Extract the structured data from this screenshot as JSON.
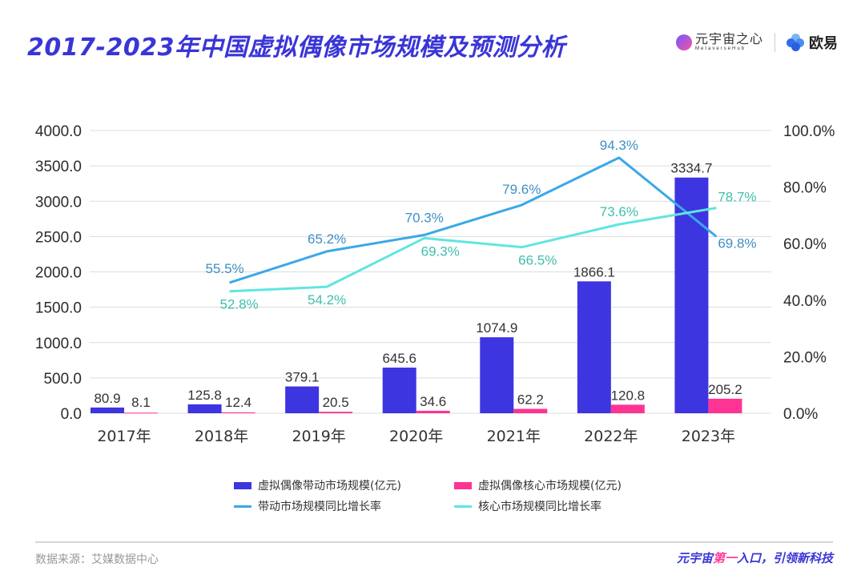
{
  "header": {
    "title": "2017-2023年中国虚拟偶像市场规模及预测分析",
    "logo1_cn": "元宇宙之心",
    "logo1_en": "MetaverseHub",
    "logo2_text": "欧易"
  },
  "chart_data": {
    "type": "bar",
    "title": "2017-2023年中国虚拟偶像市场规模及预测分析",
    "categories": [
      "2017年",
      "2018年",
      "2019年",
      "2020年",
      "2021年",
      "2022年",
      "2023年"
    ],
    "series": [
      {
        "name": "虚拟偶像带动市场规模(亿元)",
        "type": "bar",
        "axis": "left",
        "color": "#3d35e0",
        "values": [
          80.9,
          125.8,
          379.1,
          645.6,
          1074.9,
          1866.1,
          3334.7
        ],
        "labels": [
          "80.9",
          "125.8",
          "379.1",
          "645.6",
          "1074.9",
          "1866.1",
          "3334.7"
        ]
      },
      {
        "name": "虚拟偶像核心市场规模(亿元)",
        "type": "bar",
        "axis": "left",
        "color": "#ff3393",
        "values": [
          8.1,
          12.4,
          20.5,
          34.6,
          62.2,
          120.8,
          205.2
        ],
        "labels": [
          "8.1",
          "12.4",
          "20.5",
          "34.6",
          "62.2",
          "120.8",
          "205.2"
        ]
      },
      {
        "name": "带动市场规模同比增长率",
        "type": "line",
        "axis": "right",
        "color": "#3aa8e8",
        "label_color": "#3f8fc4",
        "values": [
          null,
          55.5,
          65.2,
          70.3,
          79.6,
          94.3,
          69.8
        ],
        "labels": [
          "",
          "55.5%",
          "65.2%",
          "70.3%",
          "79.6%",
          "94.3%",
          "69.8%"
        ]
      },
      {
        "name": "核心市场规模同比增长率",
        "type": "line",
        "axis": "right",
        "color": "#5fe6e0",
        "label_color": "#3fbfae",
        "values": [
          null,
          52.8,
          54.2,
          69.3,
          66.5,
          73.6,
          78.7
        ],
        "labels": [
          "",
          "52.8%",
          "54.2%",
          "69.3%",
          "66.5%",
          "73.6%",
          "78.7%"
        ]
      }
    ],
    "y_left": {
      "ylim": [
        0,
        4000
      ],
      "ticks": [
        "0.0",
        "500.0",
        "1000.0",
        "1500.0",
        "2000.0",
        "2500.0",
        "3000.0",
        "3500.0",
        "4000.0"
      ]
    },
    "y_right": {
      "ylim": [
        0,
        100
      ],
      "ticks": [
        "0.0%",
        "20.0%",
        "40.0%",
        "60.0%",
        "80.0%",
        "100.0%"
      ]
    },
    "xlabel": "",
    "ylabel": "",
    "grid": true,
    "legend": "bottom"
  },
  "legend": [
    {
      "label": "虚拟偶像带动市场规模(亿元)",
      "kind": "box",
      "color": "#3d35e0"
    },
    {
      "label": "虚拟偶像核心市场规模(亿元)",
      "kind": "box",
      "color": "#ff3393"
    },
    {
      "label": "带动市场规模同比增长率",
      "kind": "line",
      "color": "#3aa8e8"
    },
    {
      "label": "核心市场规模同比增长率",
      "kind": "line",
      "color": "#5fe6e0"
    }
  ],
  "footer": {
    "source": "数据来源：艾媒数据中心",
    "slogan_a": "元宇宙",
    "slogan_hl": "第一",
    "slogan_b": "入口，引领新科技"
  }
}
